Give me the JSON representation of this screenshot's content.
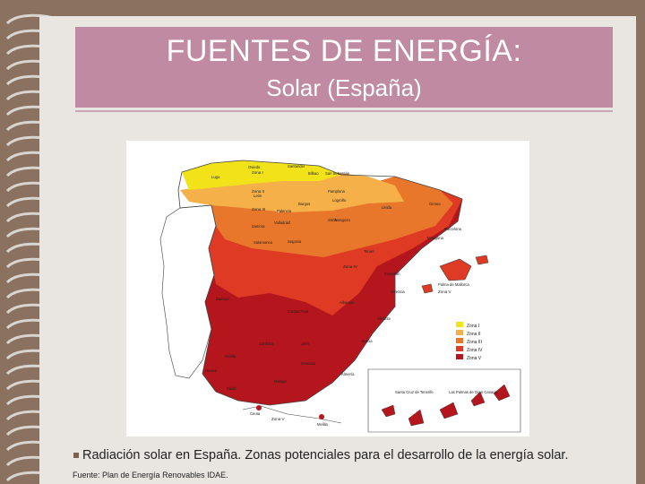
{
  "slide": {
    "title_line1": "FUENTES DE ENERGÍA:",
    "title_line2": "Solar (España)",
    "caption": "Radiación solar en España. Zonas potenciales para el desarrollo de la energía solar.",
    "source": "Fuente: Plan de Energía Renovables IDAE."
  },
  "map": {
    "zone_labels": [
      "Zona I",
      "Zona II",
      "Zona III",
      "Zona IV",
      "Zona V"
    ],
    "zone_colors": [
      "#f2e21a",
      "#f5b04a",
      "#e8772b",
      "#de3a24",
      "#b5151c"
    ],
    "place_labels": {
      "oviedo": "Oviedo",
      "santander": "Santander",
      "bilbao": "Bilbao",
      "san_sebastian": "San Sebastián",
      "lugo": "Lugo",
      "leon": "León",
      "pamplona": "Pamplona",
      "logrono": "Logroño",
      "burgos": "Burgos",
      "lleida": "Lleida",
      "girona": "Girona",
      "palencia": "Palencia",
      "zaragoza": "Zaragoza",
      "valladolid": "Valladolid",
      "soria": "Soria",
      "zamora": "Zamora",
      "barcelona": "Barcelona",
      "tarragona": "Tarragona",
      "salamanca": "Salamanca",
      "segovia": "Segovia",
      "teruel": "Teruel",
      "castellon": "Castellón",
      "valencia": "Valencia",
      "palma": "Palma de Mallorca",
      "badajoz": "Badajoz",
      "ciudad_real": "Ciudad Real",
      "albacete": "Albacete",
      "alicante": "Alicante",
      "murcia": "Murcia",
      "cordoba": "Córdoba",
      "jaen": "Jaén",
      "sevilla": "Sevilla",
      "granada": "Granada",
      "almeria": "Almería",
      "huelva": "Huelva",
      "malaga": "Málaga",
      "cadiz": "Cádiz",
      "ceuta": "Ceuta",
      "melilla": "Melilla",
      "tenerife": "Santa Cruz de Tenerife",
      "las_palmas": "Las Palmas de Gran Canaria"
    }
  }
}
